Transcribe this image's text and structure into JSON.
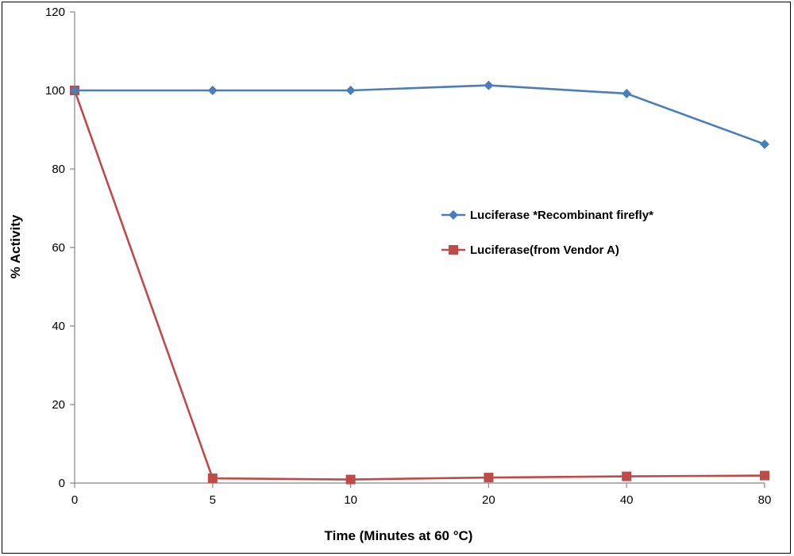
{
  "chart_data": {
    "type": "line",
    "title": "",
    "xlabel": "Time (Minutes at 60 °C)",
    "ylabel": "% Activity",
    "categories": [
      "0",
      "5",
      "10",
      "20",
      "40",
      "80"
    ],
    "ylim": [
      0,
      120
    ],
    "yticks": [
      0,
      20,
      40,
      60,
      80,
      100,
      120
    ],
    "grid": false,
    "legend_position": "center-right",
    "series": [
      {
        "name": "Luciferase *Recombinant firefly*",
        "color": "#4a7ebb",
        "marker": "diamond",
        "values": [
          100,
          100,
          100,
          101.3,
          99.2,
          86.3
        ]
      },
      {
        "name": "Luciferase(from Vendor A)",
        "color": "#be4b48",
        "marker": "square",
        "values": [
          100,
          1.2,
          0.9,
          1.4,
          1.7,
          1.9
        ]
      }
    ]
  }
}
